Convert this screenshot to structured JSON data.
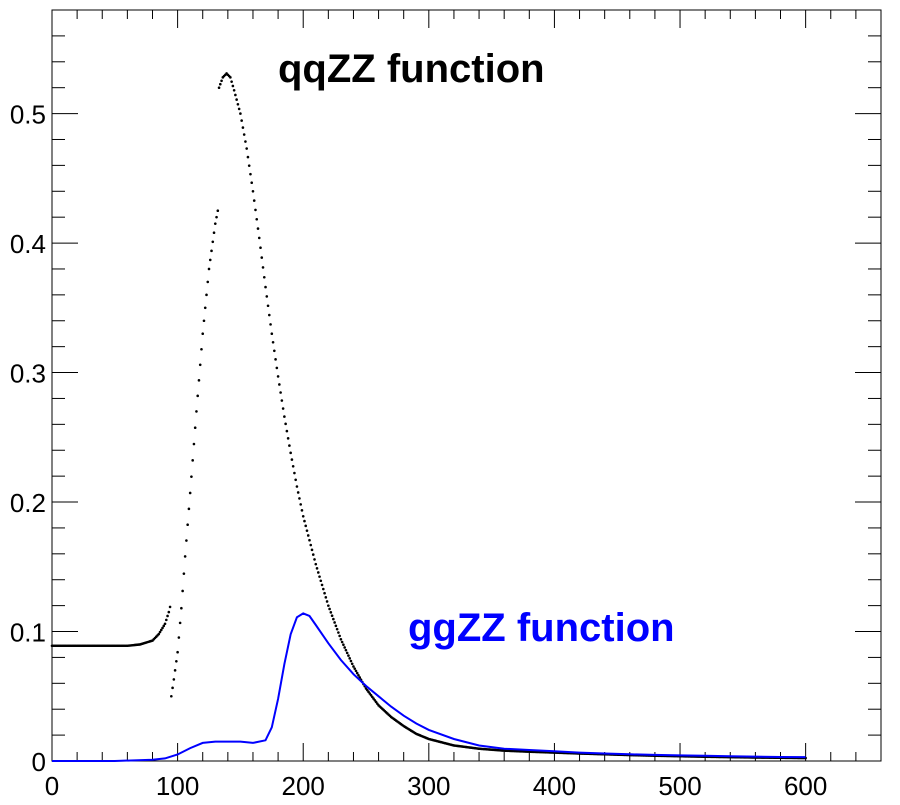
{
  "chart_data": {
    "type": "line",
    "title": "",
    "xlabel": "",
    "ylabel": "",
    "xlim": [
      0,
      660
    ],
    "ylim": [
      0,
      0.58
    ],
    "grid": false,
    "x_major_ticks": [
      0,
      100,
      200,
      300,
      400,
      500,
      600
    ],
    "y_major_ticks": [
      0,
      0.1,
      0.2,
      0.3,
      0.4,
      0.5
    ],
    "x_tick_labels": [
      "0",
      "100",
      "200",
      "300",
      "400",
      "500",
      "600"
    ],
    "y_tick_labels": [
      "0",
      "0.1",
      "0.2",
      "0.3",
      "0.4",
      "0.5"
    ],
    "annotations": [
      {
        "id": "qqzz",
        "text": "qqZZ function",
        "color": "#000000"
      },
      {
        "id": "ggzz",
        "text": "ggZZ function",
        "color": "#0000ff"
      }
    ],
    "series": [
      {
        "name": "qqZZ function",
        "color": "#000000",
        "style": "markers",
        "x": [
          0,
          20,
          40,
          60,
          70,
          80,
          85,
          90,
          93,
          95,
          95,
          97,
          100,
          103,
          106,
          110,
          115,
          120,
          125,
          130,
          133,
          133,
          136,
          139,
          142,
          145,
          150,
          155,
          160,
          165,
          170,
          175,
          180,
          185,
          190,
          195,
          200,
          210,
          220,
          230,
          240,
          250,
          260,
          270,
          280,
          290,
          300,
          320,
          340,
          360,
          380,
          400,
          420,
          440,
          460,
          480,
          500,
          520,
          540,
          560,
          580,
          600
        ],
        "y": [
          0.089,
          0.089,
          0.089,
          0.089,
          0.09,
          0.093,
          0.098,
          0.106,
          0.115,
          0.123,
          0.05,
          0.063,
          0.084,
          0.118,
          0.158,
          0.207,
          0.27,
          0.33,
          0.38,
          0.415,
          0.43,
          0.52,
          0.528,
          0.531,
          0.528,
          0.518,
          0.5,
          0.473,
          0.44,
          0.404,
          0.366,
          0.33,
          0.297,
          0.266,
          0.238,
          0.212,
          0.189,
          0.152,
          0.12,
          0.094,
          0.073,
          0.056,
          0.043,
          0.034,
          0.027,
          0.021,
          0.017,
          0.012,
          0.0095,
          0.008,
          0.0072,
          0.0065,
          0.0058,
          0.0052,
          0.0046,
          0.0041,
          0.0037,
          0.0033,
          0.003,
          0.0027,
          0.0025,
          0.0023
        ]
      },
      {
        "name": "ggZZ function",
        "color": "#0000ff",
        "style": "line",
        "x": [
          0,
          50,
          80,
          90,
          100,
          110,
          120,
          130,
          140,
          150,
          160,
          170,
          175,
          180,
          185,
          190,
          195,
          200,
          205,
          210,
          220,
          230,
          240,
          250,
          260,
          270,
          280,
          290,
          300,
          320,
          340,
          360,
          380,
          400,
          420,
          440,
          460,
          480,
          500,
          520,
          540,
          560,
          580,
          600
        ],
        "y": [
          0.0,
          0.0,
          0.001,
          0.002,
          0.005,
          0.01,
          0.014,
          0.015,
          0.015,
          0.015,
          0.014,
          0.016,
          0.026,
          0.048,
          0.075,
          0.098,
          0.111,
          0.114,
          0.112,
          0.105,
          0.091,
          0.078,
          0.067,
          0.058,
          0.05,
          0.042,
          0.035,
          0.029,
          0.024,
          0.017,
          0.012,
          0.0095,
          0.0085,
          0.0075,
          0.0065,
          0.0058,
          0.0052,
          0.0047,
          0.0043,
          0.004,
          0.0037,
          0.0034,
          0.0031,
          0.003
        ]
      }
    ]
  }
}
